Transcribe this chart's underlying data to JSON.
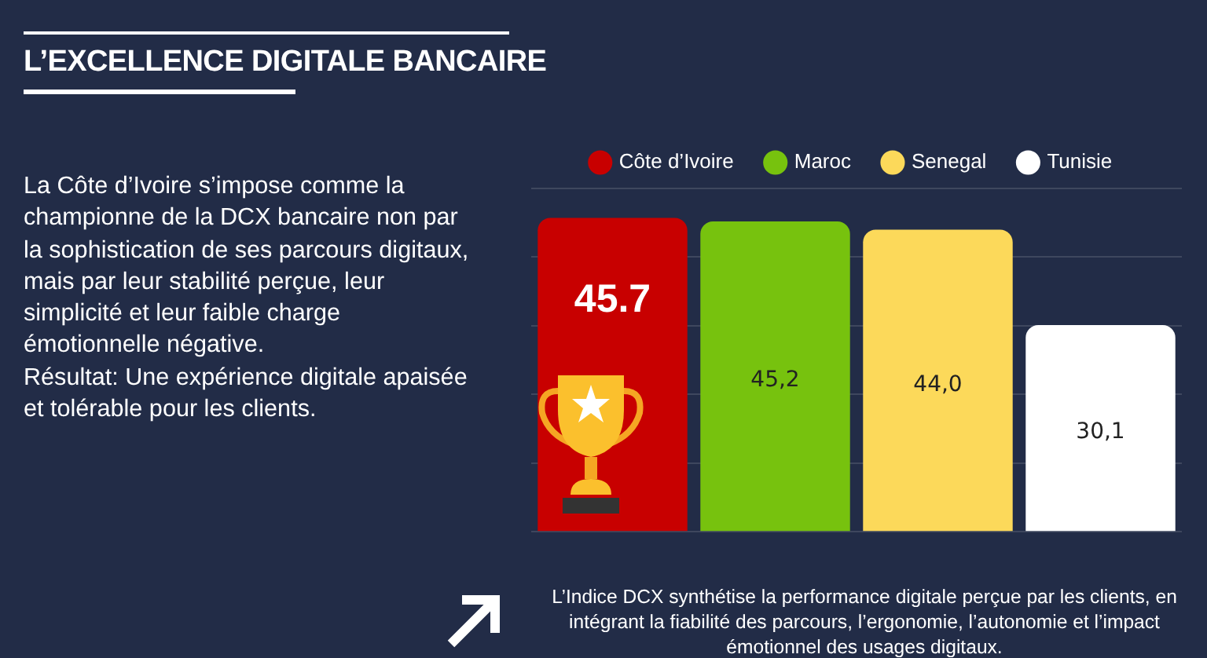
{
  "chart_data": {
    "type": "bar",
    "title": "L’EXCELLENCE DIGITALE BANCAIRE",
    "categories": [
      null
    ],
    "series": [
      {
        "name": "Côte d’Ivoire",
        "color": "#c80000",
        "values": [
          45.7
        ],
        "value_labels": [
          "45.7"
        ]
      },
      {
        "name": "Maroc",
        "color": "#77c20e",
        "values": [
          45.2
        ],
        "value_labels": [
          "45,2"
        ]
      },
      {
        "name": "Senegal",
        "color": "#fcd95a",
        "values": [
          44.0
        ],
        "value_labels": [
          "44,0"
        ]
      },
      {
        "name": "Tunisie",
        "color": "#ffffff",
        "values": [
          30.1
        ],
        "value_labels": [
          "30,1"
        ]
      }
    ],
    "ylim": [
      0,
      50
    ],
    "yticks": [
      {
        "value": 0,
        "label": null
      },
      {
        "value": 10,
        "label": null
      },
      {
        "value": 20,
        "label": null
      },
      {
        "value": 30,
        "label": null
      },
      {
        "value": 40,
        "label": null
      },
      {
        "value": 50,
        "label": null
      }
    ],
    "grid": "y",
    "legend": "top",
    "annotations": [
      "La Côte d’Ivoire s’impose comme la championne de la DCX bancaire non par la sophistication de ses parcours digitaux, mais par leur stabilité perçue, leur simplicité et leur faible charge émotionnelle négative.",
      "Résultat: Une expérience digitale apaisée et tolérable pour les clients.",
      "L’Indice DCX synthétise la performance digitale perçue par les clients, en intégrant la fiabilité des parcours, l’ergonomie, l’autonomie et l’impact émotionnel des usages digitaux."
    ]
  }
}
